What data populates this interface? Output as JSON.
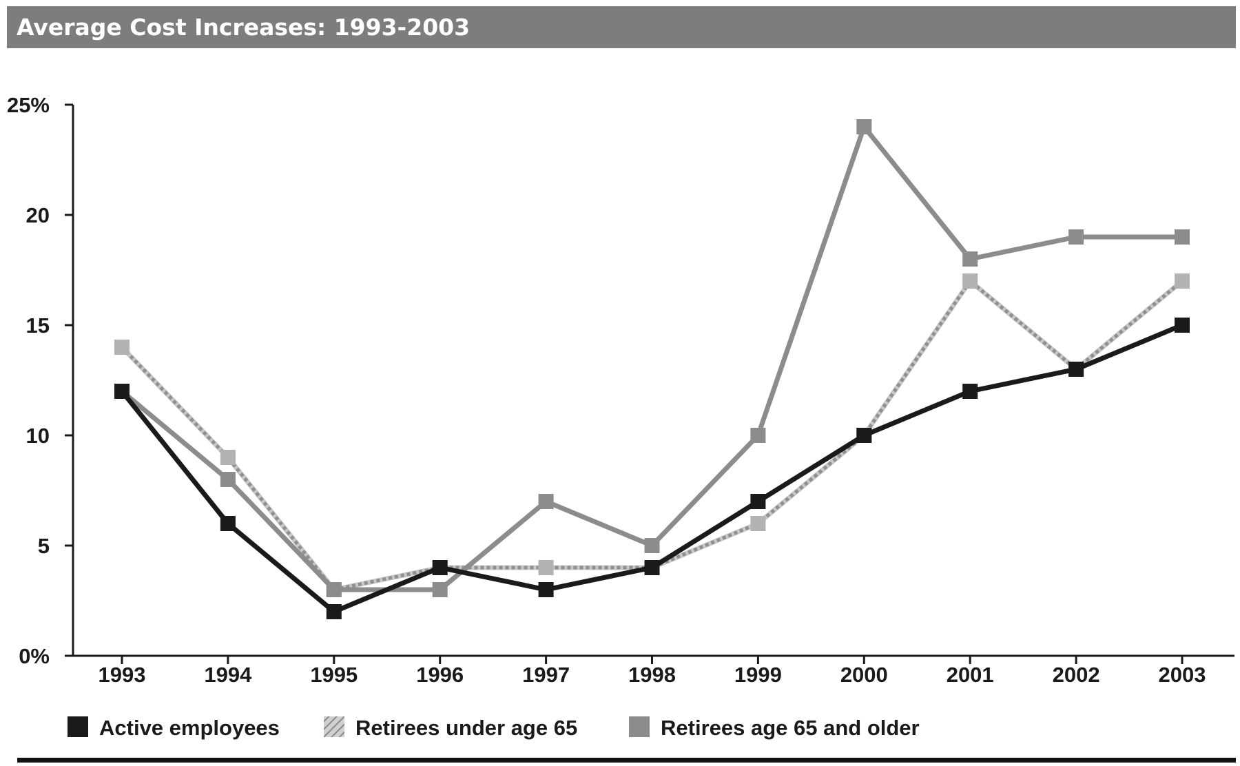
{
  "chart_data": {
    "type": "line",
    "title": "Average Cost Increases: 1993-2003",
    "xlabel": "",
    "ylabel": "",
    "x": [
      "1993",
      "1994",
      "1995",
      "1996",
      "1997",
      "1998",
      "1999",
      "2000",
      "2001",
      "2002",
      "2003"
    ],
    "ylim": [
      0,
      25
    ],
    "yticks": [
      0,
      5,
      10,
      15,
      20,
      25
    ],
    "ytick_labels": [
      "0%",
      "5",
      "10",
      "15",
      "20",
      "25%"
    ],
    "grid": false,
    "legend_position": "bottom",
    "series": [
      {
        "name": "Active employees",
        "values": [
          12,
          6,
          2,
          4,
          3,
          4,
          7,
          10,
          12,
          13,
          15
        ],
        "color": "#1a1a1a",
        "style": "solid"
      },
      {
        "name": "Retirees under age 65",
        "values": [
          14,
          9,
          3,
          4,
          4,
          4,
          6,
          10,
          17,
          13,
          17
        ],
        "color": "#a6a6a6",
        "style": "hatched"
      },
      {
        "name": "Retirees age 65 and older",
        "values": [
          12,
          8,
          3,
          3,
          7,
          5,
          10,
          24,
          18,
          19,
          19
        ],
        "color": "#8c8c8c",
        "style": "solid"
      }
    ]
  }
}
